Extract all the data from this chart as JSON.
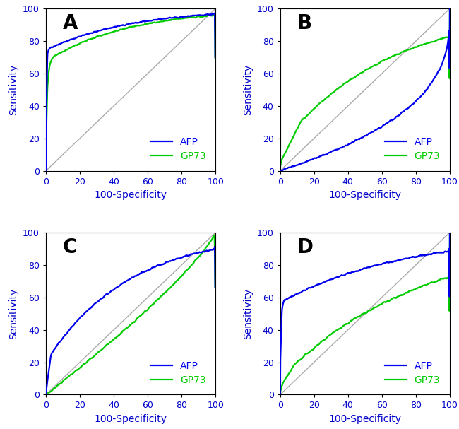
{
  "panels": [
    "A",
    "B",
    "C",
    "D"
  ],
  "afp_color": "#0000EE",
  "gp73_color": "#00CC00",
  "diag_color": "#AAAAAA",
  "line_width": 1.6,
  "axis_label_color": "#0000CC",
  "tick_label_color": "#0000CC",
  "xlabel": "100-Specificity",
  "ylabel": "Sensitivity",
  "xlim": [
    0,
    100
  ],
  "ylim": [
    0,
    100
  ],
  "xticks": [
    0,
    20,
    40,
    60,
    80,
    100
  ],
  "yticks": [
    0,
    20,
    40,
    60,
    80,
    100
  ],
  "legend_labels": [
    "AFP",
    "GP73"
  ],
  "panel_label_fontsize": 20,
  "axis_label_fontsize": 10,
  "tick_fontsize": 9,
  "legend_fontsize": 10,
  "background_color": "#FFFFFF"
}
